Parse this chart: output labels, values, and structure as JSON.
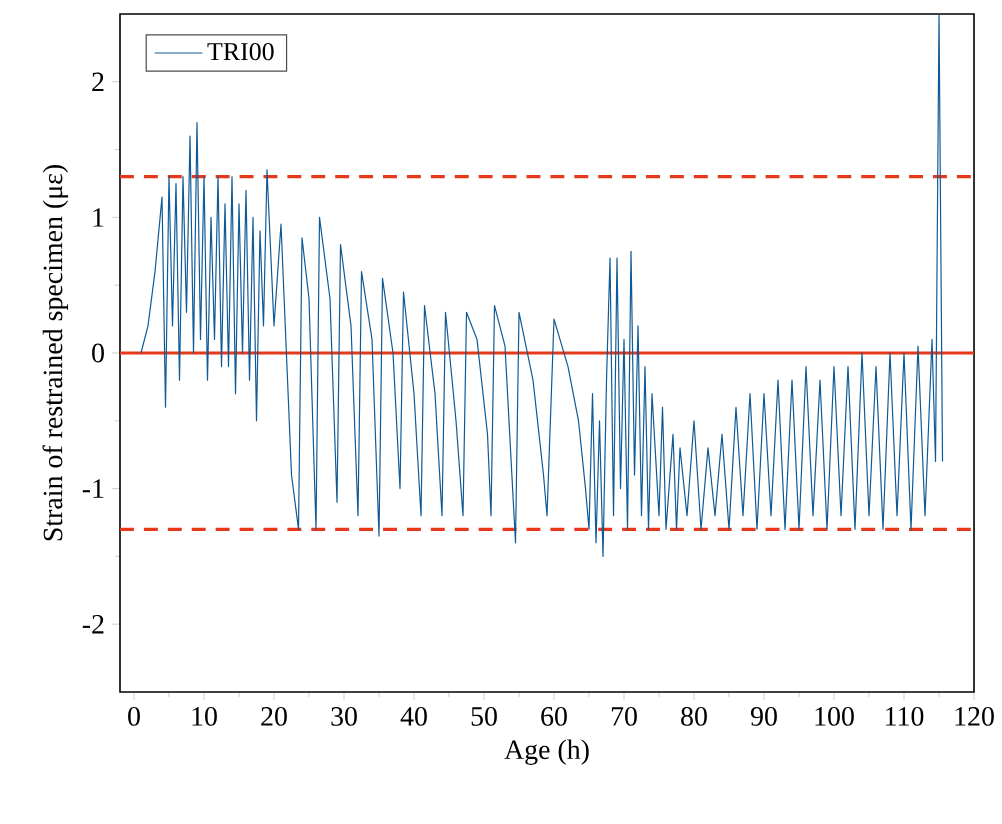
{
  "chart_data": {
    "type": "line",
    "xlabel": "Age (h)",
    "ylabel": "Strain of restrained specimen (με)",
    "xlim": [
      -2,
      120
    ],
    "ylim": [
      -2.5,
      2.5
    ],
    "xticks": [
      0,
      10,
      20,
      30,
      40,
      50,
      60,
      70,
      80,
      90,
      100,
      110,
      120
    ],
    "yticks": [
      -2,
      -1,
      0,
      1,
      2
    ],
    "legend": "top left",
    "line_style": "solid",
    "marker": "none",
    "ref_lines": [
      {
        "axis": "y",
        "value": 1.3,
        "color": "#e8381a",
        "line_style": "dashed"
      },
      {
        "axis": "y",
        "value": 0,
        "color": "#e8381a",
        "line_style": "solid"
      },
      {
        "axis": "y",
        "value": -1.3,
        "color": "#e8381a",
        "line_style": "dashed"
      }
    ],
    "series": [
      {
        "name": "TRI00",
        "color": "#0f5a96",
        "x": [
          1,
          2,
          3,
          4,
          4.5,
          5,
          5.5,
          6,
          6.5,
          7,
          7.5,
          8,
          8.5,
          9,
          9.5,
          10,
          10.5,
          11,
          11.5,
          12,
          12.5,
          13,
          13.5,
          14,
          14.5,
          15,
          15.5,
          16,
          16.5,
          17,
          17.5,
          18,
          18.5,
          19,
          20,
          21,
          22.5,
          23.5,
          24,
          25,
          26,
          26.5,
          28,
          29,
          29.5,
          31,
          32,
          32.5,
          34,
          35,
          35.5,
          37,
          38,
          38.5,
          40,
          41,
          41.5,
          43,
          44,
          44.5,
          46,
          47,
          47.5,
          49,
          50.5,
          51,
          51.5,
          53,
          54.5,
          55,
          57,
          58.5,
          59,
          60,
          62,
          63.5,
          64.5,
          65,
          65.5,
          66,
          66.5,
          67,
          67.5,
          68,
          68.5,
          69,
          69.5,
          70,
          70.5,
          71,
          71.5,
          72,
          72.5,
          73,
          73.5,
          74,
          75,
          75.5,
          76,
          77,
          77.5,
          78,
          79,
          80,
          81,
          82,
          83,
          84,
          85,
          86,
          87,
          88,
          89,
          90,
          91,
          92,
          93,
          94,
          95,
          96,
          97,
          98,
          99,
          100,
          101,
          102,
          103,
          104,
          105,
          106,
          107,
          108,
          109,
          110,
          111,
          112,
          113,
          114,
          114.5,
          115,
          115.5
        ],
        "values": [
          0,
          0.2,
          0.6,
          1.15,
          -0.4,
          1.3,
          0.2,
          1.25,
          -0.2,
          1.3,
          0.3,
          1.6,
          0,
          1.7,
          0.1,
          1.3,
          -0.2,
          1.0,
          0.1,
          1.3,
          -0.1,
          1.1,
          -0.1,
          1.3,
          -0.3,
          1.1,
          0,
          1.2,
          -0.2,
          1.0,
          -0.5,
          0.9,
          0.2,
          1.35,
          0.2,
          0.95,
          -0.9,
          -1.3,
          0.85,
          0.4,
          -1.3,
          1.0,
          0.4,
          -1.1,
          0.8,
          0.2,
          -1.2,
          0.6,
          0.1,
          -1.35,
          0.55,
          0,
          -1.0,
          0.45,
          -0.3,
          -1.2,
          0.35,
          -0.3,
          -1.2,
          0.3,
          -0.5,
          -1.2,
          0.3,
          0.1,
          -0.6,
          -1.2,
          0.35,
          0.05,
          -1.4,
          0.3,
          -0.2,
          -0.9,
          -1.2,
          0.25,
          -0.1,
          -0.5,
          -1.0,
          -1.3,
          -0.3,
          -1.4,
          -0.5,
          -1.5,
          -0.2,
          0.7,
          -1.2,
          0.7,
          -1.0,
          0.1,
          -1.3,
          0.75,
          -0.9,
          0.2,
          -1.2,
          -0.1,
          -1.3,
          -0.3,
          -1.2,
          -0.4,
          -1.3,
          -0.6,
          -1.3,
          -0.7,
          -1.2,
          -0.5,
          -1.3,
          -0.7,
          -1.2,
          -0.6,
          -1.3,
          -0.4,
          -1.2,
          -0.3,
          -1.3,
          -0.3,
          -1.2,
          -0.2,
          -1.3,
          -0.2,
          -1.3,
          -0.1,
          -1.2,
          -0.2,
          -1.3,
          -0.1,
          -1.2,
          -0.1,
          -1.3,
          0,
          -1.2,
          -0.1,
          -1.3,
          0,
          -1.2,
          0,
          -1.3,
          0.05,
          -1.2,
          0.1,
          -0.8,
          2.5,
          -0.8
        ]
      }
    ]
  }
}
